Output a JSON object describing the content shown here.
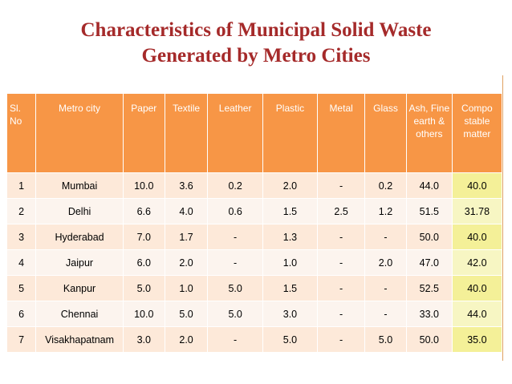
{
  "title": {
    "line1": "Characteristics of Municipal Solid Waste",
    "line2": "Generated by Metro Cities"
  },
  "colors": {
    "title": "#a52a2a",
    "header_bg": "#f79646",
    "row_odd": "#fde9d9",
    "row_even": "#fcf4ee",
    "compostable_highlight": "#f4f098"
  },
  "table": {
    "headers": [
      "Sl. No",
      "Metro city",
      "Paper",
      "Textile",
      "Leather",
      "Plastic",
      "Metal",
      "Glass",
      "Ash, Fine earth & others",
      "Compo stable matter"
    ],
    "rows": [
      [
        "1",
        "Mumbai",
        "10.0",
        "3.6",
        "0.2",
        "2.0",
        "-",
        "0.2",
        "44.0",
        "40.0"
      ],
      [
        "2",
        "Delhi",
        "6.6",
        "4.0",
        "0.6",
        "1.5",
        "2.5",
        "1.2",
        "51.5",
        "31.78"
      ],
      [
        "3",
        "Hyderabad",
        "7.0",
        "1.7",
        "-",
        "1.3",
        "-",
        "-",
        "50.0",
        "40.0"
      ],
      [
        "4",
        "Jaipur",
        "6.0",
        "2.0",
        "-",
        "1.0",
        "-",
        "2.0",
        "47.0",
        "42.0"
      ],
      [
        "5",
        "Kanpur",
        "5.0",
        "1.0",
        "5.0",
        "1.5",
        "-",
        "-",
        "52.5",
        "40.0"
      ],
      [
        "6",
        "Chennai",
        "10.0",
        "5.0",
        "5.0",
        "3.0",
        "-",
        "-",
        "33.0",
        "44.0"
      ],
      [
        "7",
        "Visakhapatnam",
        "3.0",
        "2.0",
        "-",
        "5.0",
        "-",
        "5.0",
        "50.0",
        "35.0"
      ]
    ]
  }
}
